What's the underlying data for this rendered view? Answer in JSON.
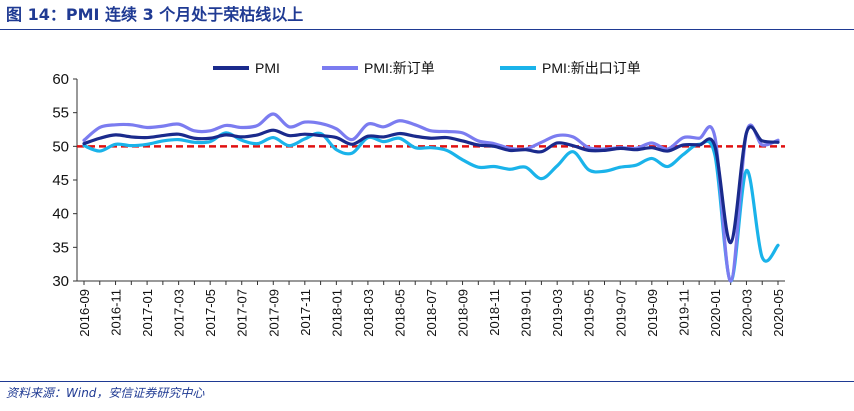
{
  "figure_title": "图 14：PMI 连续 3 个月处于荣枯线以上",
  "source_note": "资料来源：Wind，安信证券研究中心",
  "colors": {
    "title": "#1f3a93",
    "pmi": "#1a2a8c",
    "pmi_new_orders": "#7b7cf0",
    "pmi_new_export_orders": "#1ab3ea",
    "boom_bust_line": "#e01010",
    "axis": "#333333"
  },
  "chart_data": {
    "type": "line",
    "title": "",
    "xlabel": "",
    "ylabel": "",
    "ylim": [
      30,
      60
    ],
    "yticks": [
      30,
      35,
      40,
      45,
      50,
      55,
      60
    ],
    "grid": false,
    "legend_position": "top",
    "x": [
      "2016-09",
      "2016-10",
      "2016-11",
      "2016-12",
      "2017-01",
      "2017-02",
      "2017-03",
      "2017-04",
      "2017-05",
      "2017-06",
      "2017-07",
      "2017-08",
      "2017-09",
      "2017-10",
      "2017-11",
      "2017-12",
      "2018-01",
      "2018-02",
      "2018-03",
      "2018-04",
      "2018-05",
      "2018-06",
      "2018-07",
      "2018-08",
      "2018-09",
      "2018-10",
      "2018-11",
      "2018-12",
      "2019-01",
      "2019-02",
      "2019-03",
      "2019-04",
      "2019-05",
      "2019-06",
      "2019-07",
      "2019-08",
      "2019-09",
      "2019-10",
      "2019-11",
      "2019-12",
      "2020-01",
      "2020-02",
      "2020-03",
      "2020-04",
      "2020-05"
    ],
    "xtick_labels": [
      "2016-09",
      "2016-11",
      "2017-01",
      "2017-03",
      "2017-05",
      "2017-07",
      "2017-09",
      "2017-11",
      "2018-01",
      "2018-03",
      "2018-05",
      "2018-07",
      "2018-09",
      "2018-11",
      "2019-01",
      "2019-03",
      "2019-05",
      "2019-07",
      "2019-09",
      "2019-11",
      "2020-01",
      "2020-03",
      "2020-05"
    ],
    "series": [
      {
        "name": "PMI",
        "color_key": "pmi",
        "values": [
          50.4,
          51.2,
          51.7,
          51.4,
          51.3,
          51.6,
          51.8,
          51.2,
          51.2,
          51.7,
          51.4,
          51.7,
          52.4,
          51.6,
          51.8,
          51.6,
          51.3,
          50.3,
          51.5,
          51.4,
          51.9,
          51.5,
          51.2,
          51.3,
          50.8,
          50.2,
          50.0,
          49.4,
          49.5,
          49.2,
          50.5,
          50.1,
          49.4,
          49.4,
          49.7,
          49.5,
          49.8,
          49.3,
          50.2,
          50.2,
          50.0,
          35.7,
          52.0,
          50.8,
          50.6
        ]
      },
      {
        "name": "PMI:新订单",
        "color_key": "pmi_new_orders",
        "values": [
          50.9,
          52.8,
          53.2,
          53.2,
          52.8,
          53.0,
          53.3,
          52.3,
          52.3,
          53.1,
          52.8,
          53.1,
          54.8,
          52.9,
          53.6,
          53.4,
          52.6,
          51.0,
          53.3,
          52.9,
          53.8,
          53.2,
          52.3,
          52.2,
          52.0,
          50.8,
          50.4,
          49.7,
          49.6,
          50.6,
          51.6,
          51.4,
          49.8,
          49.6,
          49.8,
          49.7,
          50.5,
          49.6,
          51.3,
          51.2,
          51.4,
          29.3,
          52.0,
          50.2,
          50.9
        ]
      },
      {
        "name": "PMI:新出口订单",
        "color_key": "pmi_new_export_orders",
        "values": [
          50.1,
          49.3,
          50.3,
          50.1,
          50.3,
          50.8,
          51.0,
          50.6,
          50.7,
          52.0,
          50.9,
          50.4,
          51.3,
          50.1,
          51.1,
          51.9,
          49.5,
          49.0,
          51.3,
          50.7,
          51.2,
          49.8,
          49.8,
          49.4,
          48.0,
          46.9,
          47.0,
          46.6,
          46.9,
          45.2,
          47.1,
          49.2,
          46.5,
          46.3,
          46.9,
          47.2,
          48.2,
          47.0,
          48.8,
          50.3,
          48.7,
          28.7,
          46.4,
          33.5,
          35.3
        ]
      }
    ],
    "reference_line": {
      "value": 50,
      "color_key": "boom_bust_line",
      "style": "dashed"
    }
  }
}
